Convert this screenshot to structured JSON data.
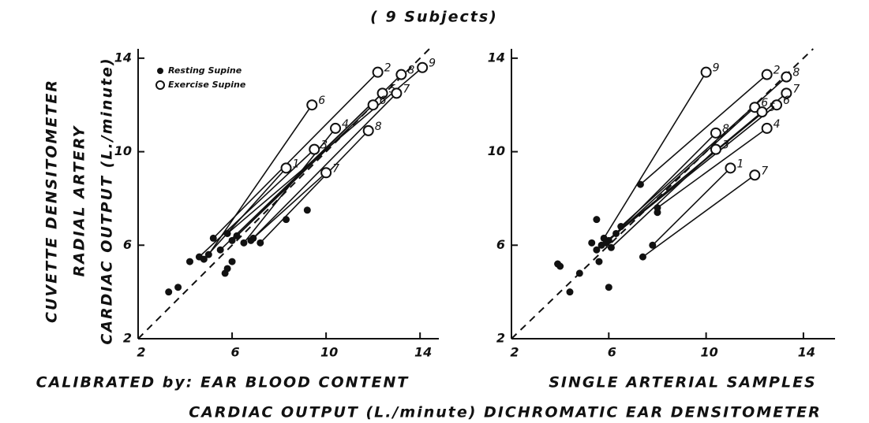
{
  "title": "( 9 Subjects)",
  "y_label": [
    "CUVETTE DENSITOMETER",
    "RADIAL ARTERY",
    "CARDIAC OUTPUT (L./minute)"
  ],
  "x_label": "CARDIAC OUTPUT (L./minute) DICHROMATIC EAR DENSITOMETER",
  "chart_data": [
    {
      "type": "scatter",
      "caption": "CALIBRATED by: EAR BLOOD CONTENT",
      "xlim": [
        2,
        14.8
      ],
      "ylim": [
        2,
        14.4
      ],
      "xticks": [
        2,
        6,
        10,
        14
      ],
      "yticks": [
        2,
        6,
        10,
        14
      ],
      "diagonal": true,
      "legend": "upper left",
      "series": [
        {
          "name": "Resting Supine",
          "color": "#111111",
          "marker": "filled",
          "x": [
            5.2,
            5.8,
            6.2,
            5.5,
            6.0,
            6.8,
            5.0,
            6.5,
            4.6,
            7.2,
            4.8,
            6.9,
            3.3,
            3.7,
            5.7,
            5.8,
            9.2,
            8.3,
            4.2,
            6.0
          ],
          "y": [
            6.3,
            6.5,
            6.4,
            5.8,
            6.2,
            6.2,
            5.6,
            6.1,
            5.5,
            6.1,
            5.4,
            6.3,
            4.0,
            4.2,
            4.8,
            5.0,
            7.5,
            7.1,
            5.3,
            5.3
          ]
        },
        {
          "name": "Exercise Supine",
          "color": "#111111",
          "marker": "open",
          "x": [
            12.2,
            14.1,
            13.2,
            12.4,
            12.0,
            13.0,
            9.4,
            10.4,
            9.5,
            11.8,
            8.3,
            10.0
          ],
          "y": [
            13.4,
            13.6,
            13.3,
            12.5,
            12.0,
            12.5,
            12.0,
            11.0,
            10.1,
            10.9,
            9.3,
            9.1
          ],
          "point_labels": [
            "2",
            "9",
            "8",
            "5",
            "6",
            "7",
            "6",
            "4",
            "3",
            "8",
            "1",
            "7"
          ]
        }
      ]
    },
    {
      "type": "scatter",
      "caption": "SINGLE ARTERIAL SAMPLES",
      "xlim": [
        2,
        15.3
      ],
      "ylim": [
        2,
        14.4
      ],
      "xticks": [
        2,
        6,
        10,
        14
      ],
      "yticks": [
        2,
        6,
        10,
        14
      ],
      "diagonal": true,
      "series": [
        {
          "color": "#111111",
          "marker": "filled",
          "x": [
            5.8,
            7.3,
            6.5,
            5.7,
            6.0,
            6.3,
            5.5,
            5.9,
            6.1,
            8.0,
            7.8,
            7.4,
            3.9,
            4.0,
            4.4,
            4.8,
            5.5,
            6.0,
            5.3,
            5.6,
            8.0
          ],
          "y": [
            6.3,
            8.6,
            6.8,
            6.0,
            6.2,
            6.5,
            5.8,
            6.1,
            5.9,
            7.6,
            6.0,
            5.5,
            5.2,
            5.1,
            4.0,
            4.8,
            7.1,
            4.2,
            6.1,
            5.3,
            7.4
          ]
        },
        {
          "color": "#111111",
          "marker": "open",
          "x": [
            10.0,
            12.5,
            13.3,
            13.3,
            12.0,
            12.9,
            12.3,
            10.4,
            10.4,
            12.5,
            11.0,
            12.0
          ],
          "y": [
            13.4,
            13.3,
            13.2,
            12.5,
            11.9,
            12.0,
            11.7,
            10.8,
            10.1,
            11.0,
            9.3,
            9.0
          ],
          "point_labels": [
            "9",
            "2",
            "8",
            "7",
            "6",
            "6",
            "5",
            "8",
            "3",
            "4",
            "1",
            "7"
          ]
        }
      ]
    }
  ]
}
